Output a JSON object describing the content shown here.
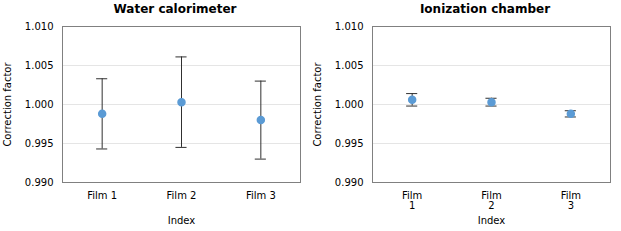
{
  "chart_data": [
    {
      "type": "scatter",
      "title": "Water calorimeter",
      "xlabel": "Index",
      "ylabel": "Correction factor",
      "categories": [
        "Film 1",
        "Film 2",
        "Film 3"
      ],
      "values": [
        0.9988,
        1.0003,
        0.998
      ],
      "yerr": [
        0.0045,
        0.0058,
        0.005
      ],
      "color": "#5b9bd5",
      "marker": "circle",
      "ylim": [
        0.99,
        1.01
      ],
      "yticks": [
        {
          "value": 0.99,
          "label": "0.990"
        },
        0.995,
        {
          "value": 1.0,
          "label": "1.000"
        },
        1.005,
        {
          "value": 1.01,
          "label": "1.010"
        }
      ],
      "grid": true
    },
    {
      "type": "scatter",
      "title": "Ionization chamber",
      "xlabel": "Index",
      "ylabel": "Correction factor",
      "categories": [
        "Film\n1",
        "Film\n2",
        "Film\n3"
      ],
      "values": [
        1.0006,
        1.0003,
        0.9988
      ],
      "yerr": [
        0.0008,
        0.0005,
        0.0004
      ],
      "color": "#5b9bd5",
      "marker": "circle",
      "ylim": [
        0.99,
        1.01
      ],
      "yticks": [
        {
          "value": 0.99,
          "label": "0.990"
        },
        0.995,
        {
          "value": 1.0,
          "label": "1.000"
        },
        1.005,
        {
          "value": 1.01,
          "label": "1.010"
        }
      ],
      "grid": true
    }
  ]
}
